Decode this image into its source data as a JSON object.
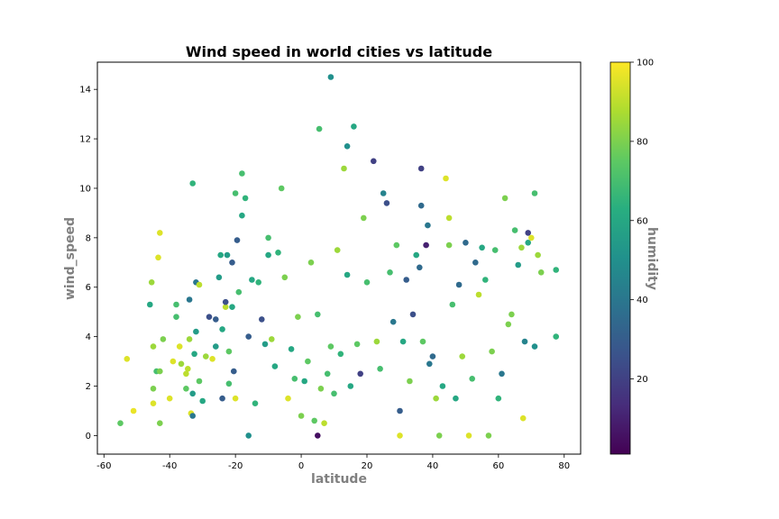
{
  "chart_data": {
    "type": "scatter",
    "title": "Wind speed in world cities vs latitude",
    "xlabel": "latitude",
    "ylabel": "wind_speed",
    "xlim": [
      -62,
      85
    ],
    "ylim": [
      -0.75,
      15.1
    ],
    "xticks": [
      -60,
      -40,
      -20,
      0,
      20,
      40,
      60,
      80
    ],
    "yticks": [
      0,
      2,
      4,
      6,
      8,
      10,
      12,
      14
    ],
    "grid": false,
    "colorbar": {
      "label": "humidity",
      "colormap": "viridis",
      "range": [
        1,
        100
      ],
      "ticks": [
        20,
        40,
        60,
        80,
        100
      ]
    },
    "points": [
      {
        "x": -55,
        "y": 0.5,
        "c": 75
      },
      {
        "x": -53,
        "y": 3.1,
        "c": 95
      },
      {
        "x": -51,
        "y": 1.0,
        "c": 97
      },
      {
        "x": -46,
        "y": 5.3,
        "c": 60
      },
      {
        "x": -45.5,
        "y": 6.2,
        "c": 85
      },
      {
        "x": -45,
        "y": 3.6,
        "c": 85
      },
      {
        "x": -45,
        "y": 1.9,
        "c": 80
      },
      {
        "x": -45,
        "y": 1.3,
        "c": 95
      },
      {
        "x": -44,
        "y": 2.6,
        "c": 70
      },
      {
        "x": -43,
        "y": 8.2,
        "c": 95
      },
      {
        "x": -43.5,
        "y": 7.2,
        "c": 95
      },
      {
        "x": -43,
        "y": 2.6,
        "c": 80
      },
      {
        "x": -43,
        "y": 0.5,
        "c": 80
      },
      {
        "x": -42,
        "y": 3.9,
        "c": 80
      },
      {
        "x": -40,
        "y": 1.5,
        "c": 95
      },
      {
        "x": -39,
        "y": 3.0,
        "c": 95
      },
      {
        "x": -38,
        "y": 5.3,
        "c": 70
      },
      {
        "x": -38,
        "y": 4.8,
        "c": 70
      },
      {
        "x": -37,
        "y": 3.6,
        "c": 95
      },
      {
        "x": -36.5,
        "y": 2.9,
        "c": 85
      },
      {
        "x": -35,
        "y": 1.9,
        "c": 75
      },
      {
        "x": -35,
        "y": 2.5,
        "c": 90
      },
      {
        "x": -34.5,
        "y": 2.7,
        "c": 90
      },
      {
        "x": -34,
        "y": 5.5,
        "c": 40
      },
      {
        "x": -34,
        "y": 3.9,
        "c": 85
      },
      {
        "x": -33.5,
        "y": 0.9,
        "c": 95
      },
      {
        "x": -33,
        "y": 10.2,
        "c": 65
      },
      {
        "x": -33,
        "y": 1.7,
        "c": 55
      },
      {
        "x": -33,
        "y": 0.8,
        "c": 40
      },
      {
        "x": -32.5,
        "y": 3.3,
        "c": 60
      },
      {
        "x": -32,
        "y": 6.2,
        "c": 40
      },
      {
        "x": -32,
        "y": 4.2,
        "c": 55
      },
      {
        "x": -31,
        "y": 6.1,
        "c": 90
      },
      {
        "x": -31,
        "y": 2.2,
        "c": 75
      },
      {
        "x": -30,
        "y": 1.4,
        "c": 60
      },
      {
        "x": -29,
        "y": 3.2,
        "c": 85
      },
      {
        "x": -28,
        "y": 4.8,
        "c": 25
      },
      {
        "x": -27,
        "y": 3.1,
        "c": 95
      },
      {
        "x": -26,
        "y": 4.7,
        "c": 30
      },
      {
        "x": -26,
        "y": 3.6,
        "c": 55
      },
      {
        "x": -25,
        "y": 6.4,
        "c": 55
      },
      {
        "x": -24.5,
        "y": 7.3,
        "c": 60
      },
      {
        "x": -24,
        "y": 1.5,
        "c": 30
      },
      {
        "x": -24,
        "y": 4.3,
        "c": 60
      },
      {
        "x": -23,
        "y": 5.2,
        "c": 90
      },
      {
        "x": -23,
        "y": 5.4,
        "c": 25
      },
      {
        "x": -22.5,
        "y": 7.3,
        "c": 55
      },
      {
        "x": -22,
        "y": 3.4,
        "c": 75
      },
      {
        "x": -22,
        "y": 2.1,
        "c": 70
      },
      {
        "x": -21,
        "y": 5.2,
        "c": 60
      },
      {
        "x": -21,
        "y": 7.0,
        "c": 30
      },
      {
        "x": -20.5,
        "y": 2.6,
        "c": 30
      },
      {
        "x": -20,
        "y": 1.5,
        "c": 95
      },
      {
        "x": -20,
        "y": 9.8,
        "c": 70
      },
      {
        "x": -19.5,
        "y": 7.9,
        "c": 30
      },
      {
        "x": -19,
        "y": 5.8,
        "c": 70
      },
      {
        "x": -18,
        "y": 10.6,
        "c": 70
      },
      {
        "x": -18,
        "y": 8.9,
        "c": 60
      },
      {
        "x": -17,
        "y": 9.6,
        "c": 65
      },
      {
        "x": -16,
        "y": 0.0,
        "c": 50
      },
      {
        "x": -16,
        "y": 4.0,
        "c": 30
      },
      {
        "x": -15,
        "y": 6.3,
        "c": 60
      },
      {
        "x": -14,
        "y": 1.3,
        "c": 65
      },
      {
        "x": -13,
        "y": 6.2,
        "c": 65
      },
      {
        "x": -12,
        "y": 4.7,
        "c": 25
      },
      {
        "x": -11,
        "y": 3.7,
        "c": 55
      },
      {
        "x": -10,
        "y": 7.3,
        "c": 60
      },
      {
        "x": -10,
        "y": 8.0,
        "c": 70
      },
      {
        "x": -9,
        "y": 3.9,
        "c": 85
      },
      {
        "x": -8,
        "y": 2.8,
        "c": 60
      },
      {
        "x": -7,
        "y": 7.4,
        "c": 65
      },
      {
        "x": -6,
        "y": 10.0,
        "c": 75
      },
      {
        "x": -5,
        "y": 6.4,
        "c": 80
      },
      {
        "x": -4,
        "y": 1.5,
        "c": 95
      },
      {
        "x": -3,
        "y": 3.5,
        "c": 60
      },
      {
        "x": -2,
        "y": 2.3,
        "c": 70
      },
      {
        "x": -1,
        "y": 4.8,
        "c": 80
      },
      {
        "x": 0,
        "y": 0.8,
        "c": 80
      },
      {
        "x": 1,
        "y": 2.2,
        "c": 60
      },
      {
        "x": 2,
        "y": 3.0,
        "c": 75
      },
      {
        "x": 3,
        "y": 7.0,
        "c": 80
      },
      {
        "x": 4,
        "y": 0.6,
        "c": 75
      },
      {
        "x": 5,
        "y": 0.0,
        "c": 5
      },
      {
        "x": 5,
        "y": 4.9,
        "c": 70
      },
      {
        "x": 5.5,
        "y": 12.4,
        "c": 70
      },
      {
        "x": 6,
        "y": 1.9,
        "c": 80
      },
      {
        "x": 7,
        "y": 0.5,
        "c": 90
      },
      {
        "x": 8,
        "y": 2.5,
        "c": 70
      },
      {
        "x": 9,
        "y": 14.5,
        "c": 50
      },
      {
        "x": 9,
        "y": 3.6,
        "c": 75
      },
      {
        "x": 10,
        "y": 1.7,
        "c": 70
      },
      {
        "x": 11,
        "y": 7.5,
        "c": 85
      },
      {
        "x": 12,
        "y": 3.3,
        "c": 65
      },
      {
        "x": 13,
        "y": 10.8,
        "c": 85
      },
      {
        "x": 14,
        "y": 11.7,
        "c": 50
      },
      {
        "x": 14,
        "y": 6.5,
        "c": 60
      },
      {
        "x": 15,
        "y": 2.0,
        "c": 60
      },
      {
        "x": 16,
        "y": 12.5,
        "c": 60
      },
      {
        "x": 17,
        "y": 3.7,
        "c": 75
      },
      {
        "x": 18,
        "y": 2.5,
        "c": 20
      },
      {
        "x": 19,
        "y": 8.8,
        "c": 80
      },
      {
        "x": 20,
        "y": 6.2,
        "c": 70
      },
      {
        "x": 22,
        "y": 11.1,
        "c": 20
      },
      {
        "x": 23,
        "y": 3.8,
        "c": 85
      },
      {
        "x": 24,
        "y": 2.7,
        "c": 70
      },
      {
        "x": 25,
        "y": 9.8,
        "c": 45
      },
      {
        "x": 26,
        "y": 9.4,
        "c": 25
      },
      {
        "x": 27,
        "y": 6.6,
        "c": 70
      },
      {
        "x": 28,
        "y": 4.6,
        "c": 40
      },
      {
        "x": 29,
        "y": 7.7,
        "c": 75
      },
      {
        "x": 30,
        "y": 1.0,
        "c": 30
      },
      {
        "x": 30,
        "y": 0.0,
        "c": 95
      },
      {
        "x": 31,
        "y": 3.8,
        "c": 60
      },
      {
        "x": 32,
        "y": 6.3,
        "c": 30
      },
      {
        "x": 33,
        "y": 2.2,
        "c": 80
      },
      {
        "x": 34,
        "y": 4.9,
        "c": 25
      },
      {
        "x": 35,
        "y": 7.3,
        "c": 60
      },
      {
        "x": 36,
        "y": 6.8,
        "c": 35
      },
      {
        "x": 36.5,
        "y": 9.3,
        "c": 35
      },
      {
        "x": 36.5,
        "y": 10.8,
        "c": 20
      },
      {
        "x": 37,
        "y": 3.8,
        "c": 75
      },
      {
        "x": 38,
        "y": 7.7,
        "c": 10
      },
      {
        "x": 38.5,
        "y": 8.5,
        "c": 40
      },
      {
        "x": 39,
        "y": 2.9,
        "c": 40
      },
      {
        "x": 40,
        "y": 3.2,
        "c": 35
      },
      {
        "x": 41,
        "y": 1.5,
        "c": 85
      },
      {
        "x": 42,
        "y": 0.0,
        "c": 80
      },
      {
        "x": 43,
        "y": 2.0,
        "c": 60
      },
      {
        "x": 44,
        "y": 10.4,
        "c": 95
      },
      {
        "x": 45,
        "y": 8.8,
        "c": 90
      },
      {
        "x": 45,
        "y": 7.7,
        "c": 80
      },
      {
        "x": 46,
        "y": 5.3,
        "c": 70
      },
      {
        "x": 47,
        "y": 1.5,
        "c": 60
      },
      {
        "x": 48,
        "y": 6.1,
        "c": 35
      },
      {
        "x": 49,
        "y": 3.2,
        "c": 85
      },
      {
        "x": 50,
        "y": 7.8,
        "c": 35
      },
      {
        "x": 51,
        "y": 0.0,
        "c": 95
      },
      {
        "x": 52,
        "y": 2.3,
        "c": 70
      },
      {
        "x": 53,
        "y": 7.0,
        "c": 35
      },
      {
        "x": 54,
        "y": 5.7,
        "c": 90
      },
      {
        "x": 55,
        "y": 7.6,
        "c": 60
      },
      {
        "x": 56,
        "y": 6.3,
        "c": 65
      },
      {
        "x": 57,
        "y": 0.0,
        "c": 80
      },
      {
        "x": 58,
        "y": 3.4,
        "c": 80
      },
      {
        "x": 59,
        "y": 7.5,
        "c": 70
      },
      {
        "x": 60,
        "y": 1.5,
        "c": 65
      },
      {
        "x": 61,
        "y": 2.5,
        "c": 40
      },
      {
        "x": 62,
        "y": 9.6,
        "c": 80
      },
      {
        "x": 63,
        "y": 4.5,
        "c": 80
      },
      {
        "x": 64,
        "y": 4.9,
        "c": 80
      },
      {
        "x": 65,
        "y": 8.3,
        "c": 70
      },
      {
        "x": 66,
        "y": 6.9,
        "c": 55
      },
      {
        "x": 67,
        "y": 7.6,
        "c": 85
      },
      {
        "x": 67.5,
        "y": 0.7,
        "c": 95
      },
      {
        "x": 68,
        "y": 3.8,
        "c": 45
      },
      {
        "x": 69,
        "y": 8.2,
        "c": 20
      },
      {
        "x": 69,
        "y": 7.8,
        "c": 60
      },
      {
        "x": 70,
        "y": 8.0,
        "c": 95
      },
      {
        "x": 71,
        "y": 9.8,
        "c": 70
      },
      {
        "x": 71,
        "y": 3.6,
        "c": 50
      },
      {
        "x": 72,
        "y": 7.3,
        "c": 85
      },
      {
        "x": 73,
        "y": 6.6,
        "c": 80
      },
      {
        "x": 77.5,
        "y": 6.7,
        "c": 65
      },
      {
        "x": 77.5,
        "y": 4.0,
        "c": 65
      }
    ]
  }
}
